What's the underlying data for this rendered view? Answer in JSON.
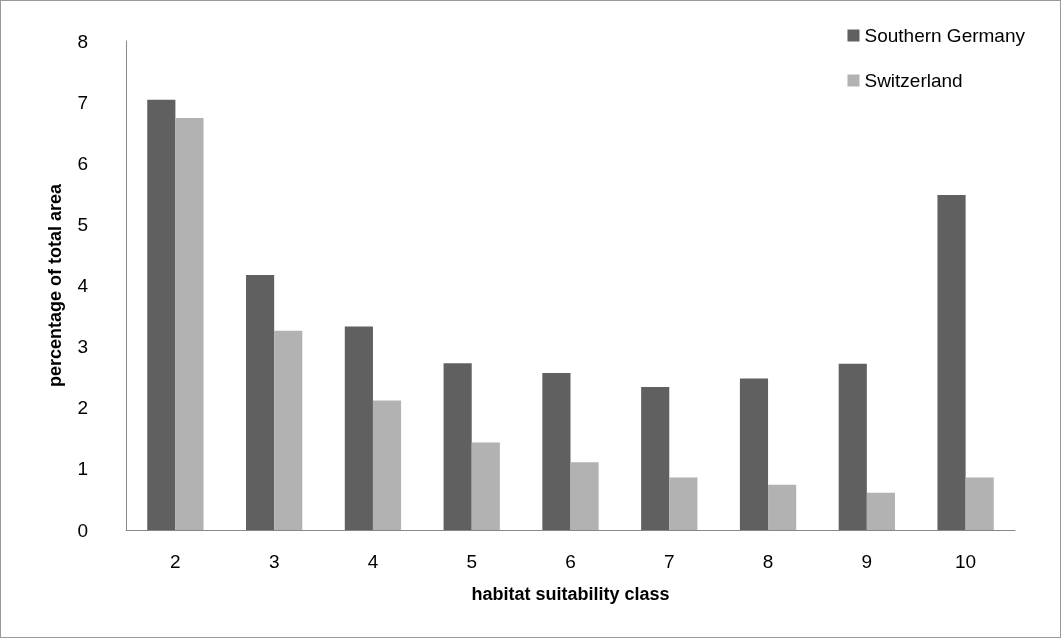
{
  "chart_data": {
    "type": "bar",
    "xlabel": "habitat suitability class",
    "ylabel": "percentage of total area",
    "categories": [
      "2",
      "3",
      "4",
      "5",
      "6",
      "7",
      "8",
      "9",
      "10"
    ],
    "series": [
      {
        "name": "Southern Germany",
        "color": "#606060",
        "values": [
          7.04,
          4.17,
          3.33,
          2.73,
          2.57,
          2.34,
          2.48,
          2.72,
          5.48
        ]
      },
      {
        "name": "Switzerland",
        "color": "#b2b2b2",
        "values": [
          6.74,
          3.26,
          2.12,
          1.43,
          1.11,
          0.86,
          0.74,
          0.61,
          0.86
        ]
      }
    ],
    "ylim": [
      0,
      8
    ],
    "yticks": [
      0,
      1,
      2,
      3,
      4,
      5,
      6,
      7,
      8
    ],
    "grid": false,
    "legend": "top right"
  }
}
